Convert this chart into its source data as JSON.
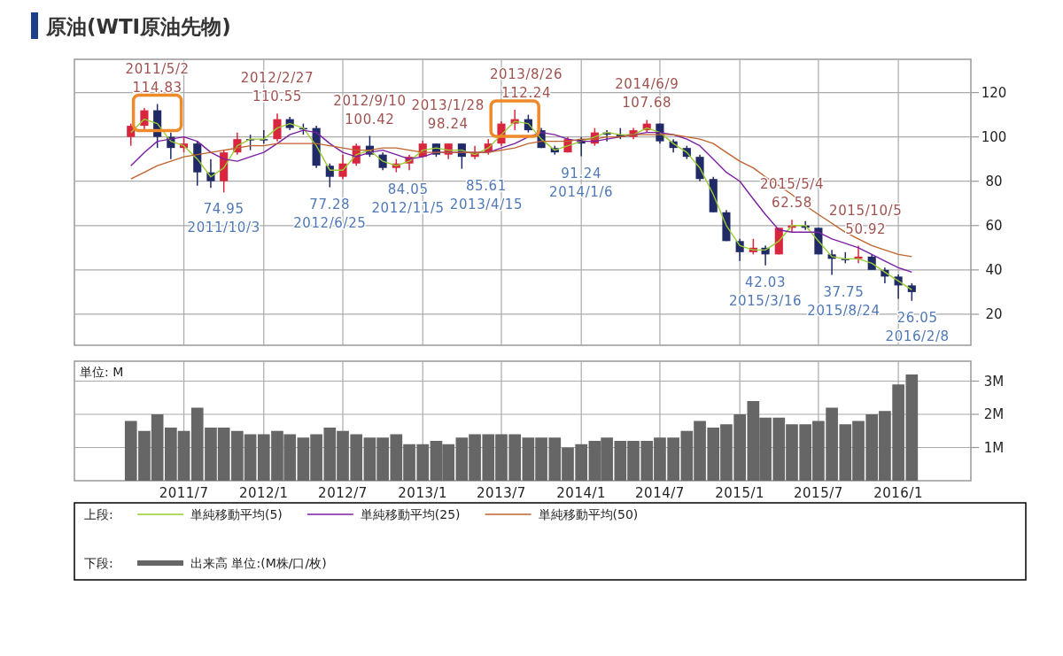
{
  "chart_data": [
    {
      "type": "candlestick",
      "title": "原油(WTI原油先物)",
      "legend_title": "上段:",
      "legend": "bottom",
      "grid": true,
      "tick_labels": "y",
      "xlim": [
        "2010-10-22",
        "2016-06-16"
      ],
      "ylim": [
        6,
        135
      ],
      "yticks": [
        20,
        40,
        60,
        80,
        100,
        120
      ],
      "xticks": [
        {
          "value": "2011-07-01",
          "label": null
        },
        {
          "value": "2012-01-01",
          "label": null
        },
        {
          "value": "2012-07-01",
          "label": null
        },
        {
          "value": "2013-01-01",
          "label": null
        },
        {
          "value": "2013-07-01",
          "label": null
        },
        {
          "value": "2014-01-01",
          "label": null
        },
        {
          "value": "2014-07-01",
          "label": null
        },
        {
          "value": "2015-01-01",
          "label": null
        },
        {
          "value": "2015-07-01",
          "label": null
        },
        {
          "value": "2016-01-01",
          "label": null
        }
      ],
      "x": [
        "2011-03-01",
        "2011-04-01",
        "2011-05-01",
        "2011-06-01",
        "2011-07-01",
        "2011-08-01",
        "2011-09-01",
        "2011-10-01",
        "2011-11-01",
        "2011-12-01",
        "2012-01-01",
        "2012-02-01",
        "2012-03-01",
        "2012-04-01",
        "2012-05-01",
        "2012-06-01",
        "2012-07-01",
        "2012-08-01",
        "2012-09-01",
        "2012-10-01",
        "2012-11-01",
        "2012-12-01",
        "2013-01-01",
        "2013-02-01",
        "2013-03-01",
        "2013-04-01",
        "2013-05-01",
        "2013-06-01",
        "2013-07-01",
        "2013-08-01",
        "2013-09-01",
        "2013-10-01",
        "2013-11-01",
        "2013-12-01",
        "2014-01-01",
        "2014-02-01",
        "2014-03-01",
        "2014-04-01",
        "2014-05-01",
        "2014-06-01",
        "2014-07-01",
        "2014-08-01",
        "2014-09-01",
        "2014-10-01",
        "2014-11-01",
        "2014-12-01",
        "2015-01-01",
        "2015-02-01",
        "2015-03-01",
        "2015-04-01",
        "2015-05-01",
        "2015-06-01",
        "2015-07-01",
        "2015-08-01",
        "2015-09-01",
        "2015-10-01",
        "2015-11-01",
        "2015-12-01",
        "2016-01-01",
        "2016-02-01"
      ],
      "ohlc": [
        [
          100,
          106,
          96,
          105
        ],
        [
          105,
          113,
          103,
          112
        ],
        [
          112,
          114.83,
          95,
          100
        ],
        [
          100,
          102,
          90,
          95
        ],
        [
          95,
          100,
          93,
          97
        ],
        [
          97,
          98,
          78,
          84
        ],
        [
          84,
          90,
          77,
          80
        ],
        [
          80,
          94,
          74.95,
          93
        ],
        [
          93,
          102,
          92,
          99
        ],
        [
          99,
          101,
          94,
          99
        ],
        [
          99,
          103,
          97,
          99
        ],
        [
          99,
          110.55,
          98,
          108
        ],
        [
          108,
          109,
          103,
          104
        ],
        [
          104,
          106,
          101,
          104
        ],
        [
          104,
          105,
          86,
          87
        ],
        [
          87,
          88,
          77.28,
          82
        ],
        [
          82,
          92,
          81,
          88
        ],
        [
          88,
          97,
          87,
          96
        ],
        [
          96,
          100.42,
          91,
          92
        ],
        [
          92,
          93,
          85,
          86
        ],
        [
          86,
          90,
          84.05,
          88
        ],
        [
          88,
          92,
          85,
          91
        ],
        [
          91,
          98.24,
          91,
          97
        ],
        [
          97,
          97,
          91,
          92
        ],
        [
          92,
          97,
          90,
          97
        ],
        [
          97,
          97,
          85.61,
          91
        ],
        [
          91,
          96,
          90,
          93
        ],
        [
          93,
          99,
          92,
          97
        ],
        [
          97,
          107,
          96,
          106
        ],
        [
          106,
          112.24,
          103,
          108
        ],
        [
          108,
          110,
          102,
          103
        ],
        [
          103,
          104,
          95,
          95
        ],
        [
          95,
          96,
          92,
          93
        ],
        [
          93,
          100,
          93,
          99
        ],
        [
          99,
          100,
          91.24,
          97
        ],
        [
          97,
          104,
          96,
          102
        ],
        [
          102,
          103,
          98,
          101
        ],
        [
          101,
          104,
          99,
          100
        ],
        [
          100,
          104,
          99,
          103
        ],
        [
          103,
          107.68,
          102,
          106
        ],
        [
          106,
          106,
          97,
          98
        ],
        [
          98,
          99,
          93,
          95
        ],
        [
          95,
          96,
          90,
          91
        ],
        [
          91,
          92,
          80,
          81
        ],
        [
          81,
          82,
          66,
          66
        ],
        [
          66,
          67,
          53,
          53
        ],
        [
          53,
          54,
          44,
          48
        ],
        [
          48,
          54,
          47,
          50
        ],
        [
          50,
          51,
          42.03,
          47
        ],
        [
          47,
          59,
          47,
          59
        ],
        [
          59,
          62.58,
          57,
          60
        ],
        [
          60,
          62,
          58,
          59
        ],
        [
          59,
          59,
          47,
          47
        ],
        [
          47,
          49,
          37.75,
          45
        ],
        [
          45,
          48,
          43,
          45
        ],
        [
          45,
          50.92,
          43,
          46
        ],
        [
          46,
          47,
          40,
          40
        ],
        [
          40,
          41,
          34,
          37
        ],
        [
          37,
          38,
          27,
          33
        ],
        [
          33,
          34,
          26.05,
          30
        ]
      ],
      "colors": [
        "#d7263d",
        "#d7263d",
        "#1f2a66",
        "#1f2a66",
        "#d7263d",
        "#1f2a66",
        "#1f2a66",
        "#d7263d",
        "#d7263d",
        "#1f2a66",
        "#1f2a66",
        "#d7263d",
        "#1f2a66",
        "#1f2a66",
        "#1f2a66",
        "#1f2a66",
        "#d7263d",
        "#d7263d",
        "#1f2a66",
        "#1f2a66",
        "#d7263d",
        "#d7263d",
        "#d7263d",
        "#1f2a66",
        "#d7263d",
        "#1f2a66",
        "#d7263d",
        "#d7263d",
        "#d7263d",
        "#d7263d",
        "#1f2a66",
        "#1f2a66",
        "#1f2a66",
        "#d7263d",
        "#1f2a66",
        "#d7263d",
        "#1f2a66",
        "#1f2a66",
        "#d7263d",
        "#d7263d",
        "#1f2a66",
        "#1f2a66",
        "#1f2a66",
        "#1f2a66",
        "#1f2a66",
        "#1f2a66",
        "#1f2a66",
        "#d7263d",
        "#1f2a66",
        "#d7263d",
        "#d7263d",
        "#1f2a66",
        "#1f2a66",
        "#1f2a66",
        "#1f2a66",
        "#d7263d",
        "#1f2a66",
        "#1f2a66",
        "#1f2a66",
        "#1f2a66"
      ],
      "series": [
        {
          "type": "line",
          "name": "単純移動平均(5)",
          "color": "#9acd32",
          "values": [
            102,
            108,
            106,
            98,
            96,
            90,
            82,
            86,
            96,
            99,
            99,
            104,
            106,
            104,
            96,
            85,
            85,
            92,
            94,
            89,
            87,
            89,
            94,
            95,
            94,
            94,
            92,
            95,
            101,
            107,
            106,
            99,
            94,
            96,
            98,
            100,
            102,
            101,
            101,
            104,
            102,
            97,
            93,
            86,
            74,
            60,
            51,
            49,
            49,
            53,
            60,
            60,
            53,
            46,
            45,
            45,
            43,
            39,
            35,
            31
          ]
        },
        {
          "type": "line",
          "name": "単純移動平均(25)",
          "color": "#7b1fa2",
          "values": [
            87,
            93,
            98,
            99,
            100,
            98,
            93,
            90,
            89,
            91,
            93,
            97,
            101,
            103,
            102,
            97,
            93,
            91,
            93,
            94,
            92,
            90,
            91,
            93,
            93,
            93,
            93,
            93,
            95,
            97,
            100,
            102,
            101,
            99,
            98,
            98,
            99,
            100,
            101,
            102,
            102,
            101,
            99,
            96,
            90,
            84,
            80,
            72,
            65,
            58,
            57,
            57,
            57,
            54,
            52,
            50,
            47,
            44,
            41,
            39
          ]
        },
        {
          "type": "line",
          "name": "単純移動平均(50)",
          "color": "#c0632e",
          "values": [
            81,
            84,
            87,
            89,
            91,
            92,
            93,
            94,
            95,
            96,
            96,
            97,
            97,
            97,
            97,
            96,
            95,
            94,
            94,
            95,
            95,
            94,
            93,
            93,
            93,
            93,
            93,
            93,
            94,
            95,
            97,
            98,
            98,
            98,
            99,
            99,
            100,
            100,
            101,
            101,
            101,
            101,
            100,
            99,
            97,
            93,
            89,
            86,
            82,
            78,
            74,
            69,
            65,
            61,
            57,
            54,
            51,
            49,
            47,
            46
          ]
        }
      ],
      "annotations": [
        {
          "text": "2011/5/2\n114.83",
          "x": "2011-05-01",
          "y": 114.83
        },
        {
          "text": "74.95\n2011/10/3",
          "x": "2011-10-01",
          "y": 74.95
        },
        {
          "text": "2012/2/27\n110.55",
          "x": "2012-02-01",
          "y": 110.55
        },
        {
          "text": "77.28\n2012/6/25",
          "x": "2012-06-01",
          "y": 77.28
        },
        {
          "text": "2012/9/10\n100.42",
          "x": "2012-09-01",
          "y": 100.42
        },
        {
          "text": "84.05\n2012/11/5",
          "x": "2012-11-01",
          "y": 84.05
        },
        {
          "text": "2013/1/28\n98.24",
          "x": "2013-01-01",
          "y": 98.24
        },
        {
          "text": "85.61\n2013/4/15",
          "x": "2013-04-01",
          "y": 85.61
        },
        {
          "text": "2013/8/26\n112.24",
          "x": "2013-08-01",
          "y": 112.24
        },
        {
          "text": "91.24\n2014/1/6",
          "x": "2014-01-01",
          "y": 91.24
        },
        {
          "text": "2014/6/9\n107.68",
          "x": "2014-06-01",
          "y": 107.68
        },
        {
          "text": "42.03\n2015/3/16",
          "x": "2015-03-01",
          "y": 42.03
        },
        {
          "text": "2015/5/4\n62.58",
          "x": "2015-05-01",
          "y": 62.58
        },
        {
          "text": "37.75\n2015/8/24",
          "x": "2015-08-01",
          "y": 37.75
        },
        {
          "text": "2015/10/5\n50.92",
          "x": "2015-10-01",
          "y": 50.92
        },
        {
          "text": "26.05\n2016/2/8",
          "x": "2016-02-01",
          "y": 26.05
        }
      ]
    },
    {
      "type": "bar",
      "legend_title": "下段:",
      "legend": "bottom",
      "grid": true,
      "xlim": [
        "2010-10-22",
        "2016-06-16"
      ],
      "ylim": [
        0,
        3.6
      ],
      "yticks": [
        {
          "value": 1,
          "label": "1M"
        },
        {
          "value": 2,
          "label": "2M"
        },
        {
          "value": 3,
          "label": "3M"
        }
      ],
      "xticks": [
        {
          "value": "2011-07-01",
          "label": "2011/7"
        },
        {
          "value": "2012-01-01",
          "label": "2012/1"
        },
        {
          "value": "2012-07-01",
          "label": "2012/7"
        },
        {
          "value": "2013-01-01",
          "label": "2013/1"
        },
        {
          "value": "2013-07-01",
          "label": "2013/7"
        },
        {
          "value": "2014-01-01",
          "label": "2014/1"
        },
        {
          "value": "2014-07-01",
          "label": "2014/7"
        },
        {
          "value": "2015-01-01",
          "label": "2015/1"
        },
        {
          "value": "2015-07-01",
          "label": "2015/7"
        },
        {
          "value": "2016-01-01",
          "label": "2016/1"
        }
      ],
      "x": [
        "2011-03-01",
        "2011-04-01",
        "2011-05-01",
        "2011-06-01",
        "2011-07-01",
        "2011-08-01",
        "2011-09-01",
        "2011-10-01",
        "2011-11-01",
        "2011-12-01",
        "2012-01-01",
        "2012-02-01",
        "2012-03-01",
        "2012-04-01",
        "2012-05-01",
        "2012-06-01",
        "2012-07-01",
        "2012-08-01",
        "2012-09-01",
        "2012-10-01",
        "2012-11-01",
        "2012-12-01",
        "2013-01-01",
        "2013-02-01",
        "2013-03-01",
        "2013-04-01",
        "2013-05-01",
        "2013-06-01",
        "2013-07-01",
        "2013-08-01",
        "2013-09-01",
        "2013-10-01",
        "2013-11-01",
        "2013-12-01",
        "2014-01-01",
        "2014-02-01",
        "2014-03-01",
        "2014-04-01",
        "2014-05-01",
        "2014-06-01",
        "2014-07-01",
        "2014-08-01",
        "2014-09-01",
        "2014-10-01",
        "2014-11-01",
        "2014-12-01",
        "2015-01-01",
        "2015-02-01",
        "2015-03-01",
        "2015-04-01",
        "2015-05-01",
        "2015-06-01",
        "2015-07-01",
        "2015-08-01",
        "2015-09-01",
        "2015-10-01",
        "2015-11-01",
        "2015-12-01",
        "2016-01-01",
        "2016-02-01"
      ],
      "series": [
        {
          "name": "出来高 単位:(M株/口/枚)",
          "color": "#666666",
          "values": [
            1.8,
            1.5,
            2.0,
            1.6,
            1.5,
            2.2,
            1.6,
            1.6,
            1.5,
            1.4,
            1.4,
            1.5,
            1.4,
            1.3,
            1.4,
            1.6,
            1.5,
            1.4,
            1.3,
            1.3,
            1.4,
            1.1,
            1.1,
            1.2,
            1.1,
            1.3,
            1.4,
            1.4,
            1.4,
            1.4,
            1.3,
            1.3,
            1.3,
            1.0,
            1.1,
            1.2,
            1.3,
            1.2,
            1.2,
            1.2,
            1.3,
            1.3,
            1.5,
            1.8,
            1.6,
            1.7,
            2.0,
            2.4,
            1.9,
            1.9,
            1.7,
            1.7,
            1.8,
            2.2,
            1.7,
            1.8,
            2.0,
            2.1,
            2.9,
            3.2
          ]
        }
      ],
      "annotations": [
        "単位: M"
      ]
    }
  ]
}
